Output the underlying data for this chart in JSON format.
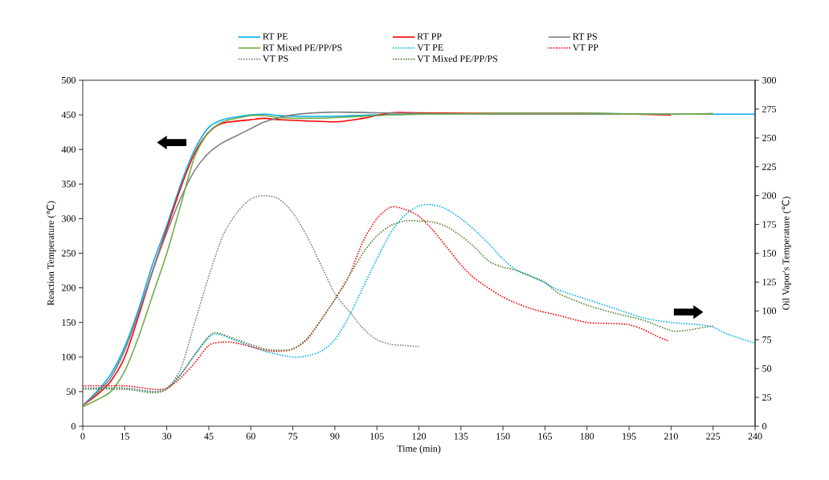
{
  "chart_data": {
    "type": "line",
    "xlabel": "Time (min)",
    "ylabel": "Reaction Temperature (℃)",
    "y2label": "Oil Vapor's Temperature (℃)",
    "xlim": [
      0,
      240
    ],
    "xticks": [
      0,
      15,
      30,
      45,
      60,
      75,
      90,
      105,
      120,
      135,
      150,
      165,
      180,
      195,
      210,
      225,
      240
    ],
    "ylim": [
      0,
      500
    ],
    "yticks": [
      0,
      50,
      100,
      150,
      200,
      250,
      300,
      350,
      400,
      450,
      500
    ],
    "y2lim": [
      0,
      300
    ],
    "y2ticks": [
      0,
      25,
      50,
      75,
      100,
      125,
      150,
      175,
      200,
      225,
      250,
      275,
      300
    ],
    "legend": "top",
    "grid": false,
    "marker": "none",
    "series": [
      {
        "name": "RT PE",
        "color": "#00b0f0",
        "line_style": "solid",
        "x": [
          0,
          5,
          10,
          15,
          20,
          25,
          30,
          35,
          40,
          45,
          50,
          55,
          60,
          65,
          70,
          75,
          90,
          105,
          120,
          150,
          180,
          210,
          240
        ],
        "values": [
          30,
          50,
          75,
          115,
          170,
          235,
          290,
          350,
          400,
          432,
          443,
          447,
          450,
          451,
          449,
          448,
          448,
          450,
          451,
          452,
          452,
          451,
          451
        ]
      },
      {
        "name": "RT PP",
        "color": "#ff0000",
        "line_style": "solid",
        "x": [
          0,
          5,
          10,
          15,
          20,
          25,
          30,
          35,
          40,
          45,
          50,
          60,
          65,
          70,
          90,
          100,
          110,
          120,
          150,
          180,
          210
        ],
        "values": [
          30,
          45,
          65,
          100,
          160,
          225,
          285,
          345,
          395,
          425,
          438,
          443,
          445,
          443,
          440,
          445,
          453,
          453,
          452,
          452,
          450
        ]
      },
      {
        "name": "RT PS",
        "color": "#808080",
        "line_style": "solid",
        "x": [
          0,
          5,
          10,
          15,
          20,
          25,
          30,
          35,
          40,
          45,
          50,
          55,
          60,
          65,
          75,
          90,
          105,
          120,
          150,
          180,
          210,
          225
        ],
        "values": [
          30,
          48,
          70,
          110,
          165,
          225,
          280,
          330,
          370,
          395,
          410,
          420,
          430,
          440,
          450,
          454,
          453,
          452,
          451,
          451,
          451,
          451
        ]
      },
      {
        "name": "RT Mixed PE/PP/PS",
        "color": "#70ad47",
        "line_style": "solid",
        "x": [
          0,
          5,
          10,
          15,
          20,
          25,
          30,
          35,
          40,
          45,
          50,
          55,
          60,
          65,
          70,
          80,
          90,
          105,
          120,
          150,
          180,
          210,
          225
        ],
        "values": [
          28,
          38,
          50,
          80,
          130,
          190,
          250,
          320,
          390,
          425,
          440,
          445,
          449,
          449,
          446,
          445,
          446,
          449,
          451,
          452,
          452,
          451,
          452
        ]
      },
      {
        "name": "VT PE",
        "color": "#00b0f0",
        "line_style": "dotted",
        "axis": "y2",
        "x": [
          0,
          15,
          25,
          30,
          35,
          40,
          45,
          48,
          55,
          65,
          75,
          80,
          85,
          90,
          95,
          100,
          105,
          110,
          115,
          120,
          125,
          130,
          135,
          140,
          145,
          150,
          155,
          160,
          165,
          170,
          180,
          190,
          200,
          210,
          220,
          225,
          230,
          240
        ],
        "values": [
          33,
          33,
          30,
          33,
          45,
          62,
          77,
          80,
          74,
          65,
          60,
          61,
          65,
          75,
          95,
          120,
          145,
          168,
          183,
          191,
          192,
          188,
          180,
          170,
          158,
          145,
          135,
          130,
          124,
          118,
          110,
          102,
          94,
          90,
          88,
          86,
          80,
          72
        ]
      },
      {
        "name": "VT PP",
        "color": "#ff0000",
        "line_style": "dotted",
        "axis": "y2",
        "x": [
          0,
          15,
          25,
          30,
          35,
          40,
          45,
          50,
          55,
          65,
          70,
          75,
          80,
          85,
          90,
          95,
          100,
          105,
          110,
          115,
          120,
          125,
          130,
          135,
          140,
          150,
          160,
          170,
          180,
          190,
          195,
          200,
          205,
          209
        ],
        "values": [
          35,
          35,
          32,
          33,
          42,
          55,
          70,
          73,
          72,
          66,
          65,
          67,
          75,
          92,
          110,
          130,
          160,
          180,
          190,
          188,
          182,
          170,
          155,
          140,
          128,
          112,
          102,
          96,
          90,
          89,
          88,
          84,
          78,
          74
        ]
      },
      {
        "name": "VT PS",
        "color": "#808080",
        "line_style": "dotted",
        "axis": "y2",
        "x": [
          0,
          15,
          25,
          30,
          35,
          40,
          45,
          50,
          55,
          60,
          65,
          70,
          75,
          80,
          85,
          90,
          95,
          100,
          105,
          110,
          115,
          120
        ],
        "values": [
          33,
          33,
          30,
          33,
          50,
          90,
          130,
          165,
          185,
          197,
          200,
          197,
          185,
          165,
          140,
          115,
          100,
          85,
          75,
          71,
          70,
          69
        ]
      },
      {
        "name": "VT Mixed PE/PP/PS",
        "color": "#548235",
        "line_style": "dotted",
        "axis": "y2",
        "x": [
          0,
          15,
          25,
          30,
          35,
          40,
          45,
          48,
          55,
          65,
          70,
          75,
          80,
          85,
          90,
          95,
          100,
          105,
          110,
          115,
          120,
          125,
          130,
          135,
          140,
          145,
          150,
          155,
          160,
          165,
          170,
          180,
          190,
          200,
          210,
          215,
          220,
          225
        ],
        "values": [
          32,
          32,
          29,
          32,
          45,
          62,
          78,
          81,
          75,
          67,
          66,
          67,
          76,
          92,
          110,
          130,
          150,
          165,
          174,
          178,
          178,
          177,
          173,
          165,
          155,
          143,
          138,
          135,
          130,
          125,
          115,
          105,
          98,
          92,
          83,
          83,
          85,
          87
        ]
      }
    ]
  }
}
